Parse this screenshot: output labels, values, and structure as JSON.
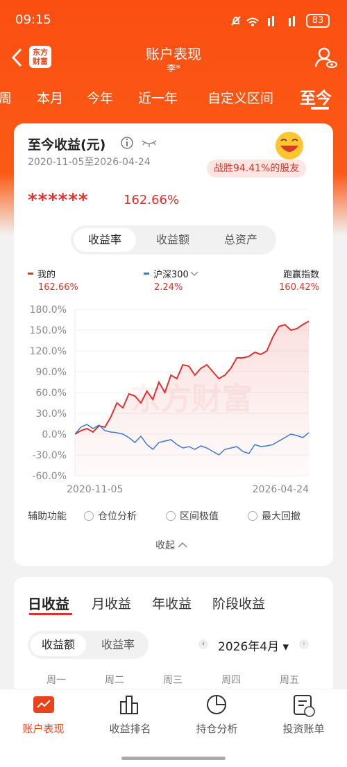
{
  "status": {
    "time": "09:15",
    "battery": "83"
  },
  "header": {
    "logo": [
      "东方",
      "财富"
    ],
    "title": "账户表现",
    "subtitle": "李*"
  },
  "tabs": [
    "周",
    "本月",
    "今年",
    "近一年",
    "自定义区间",
    "至今"
  ],
  "card": {
    "title": "至今收益(元)",
    "date_range": "2020-11-05至2026-04-24",
    "badge": "战胜94.41%的股友",
    "masked": "******",
    "return": "162.66%"
  },
  "segments": [
    "收益率",
    "收益额",
    "总资产"
  ],
  "legend": {
    "outperform": "跑赢指数",
    "values": [
      "162.66%",
      "2.24%",
      "160.42%"
    ]
  },
  "watermark": "东方财富",
  "chart_data": {
    "type": "line",
    "categories": [
      "2020-11-05",
      null,
      null,
      null,
      null,
      null,
      null,
      null,
      null,
      null,
      null,
      null,
      null,
      null,
      null,
      null,
      null,
      null,
      null,
      null,
      null,
      null,
      null,
      null,
      null,
      null,
      null,
      null,
      null,
      null,
      null,
      null,
      null,
      null,
      null,
      null,
      null,
      null,
      null,
      "2026-04-24"
    ],
    "series": [
      {
        "name": "我的",
        "color": "#e0312b",
        "values": [
          0,
          5,
          8,
          3,
          12,
          10,
          25,
          45,
          38,
          58,
          55,
          45,
          62,
          50,
          75,
          60,
          85,
          80,
          100,
          98,
          85,
          95,
          100,
          90,
          80,
          85,
          95,
          110,
          110,
          112,
          118,
          115,
          120,
          140,
          155,
          158,
          150,
          152,
          158,
          162.66
        ]
      },
      {
        "name": "沪深300",
        "color": "#3a78d4",
        "values": [
          0,
          10,
          14,
          8,
          13,
          5,
          3,
          2,
          0,
          -5,
          -12,
          -3,
          -15,
          -22,
          -12,
          -10,
          -8,
          -15,
          -20,
          -18,
          -22,
          -17,
          -20,
          -25,
          -30,
          -22,
          -20,
          -18,
          -25,
          -28,
          -15,
          -18,
          -17,
          -15,
          -10,
          -5,
          0,
          -2,
          -5,
          2.24
        ]
      }
    ],
    "ylim": [
      -60,
      180
    ],
    "yticks": [
      {
        "value": 180,
        "label": "180.0%"
      },
      {
        "value": 150,
        "label": "150.0%"
      },
      {
        "value": 120,
        "label": "120.0%"
      },
      {
        "value": 90,
        "label": "90.0%"
      },
      {
        "value": 60,
        "label": "60.0%"
      },
      {
        "value": 30,
        "label": "30.0%"
      },
      {
        "value": 0,
        "label": "0.0%"
      },
      {
        "value": -30,
        "label": "-30.0%"
      },
      {
        "value": -60,
        "label": "-60.0%"
      }
    ],
    "grid": true
  },
  "options": {
    "label": "辅助功能",
    "items": [
      "仓位分析",
      "区间极值",
      "最大回撤"
    ],
    "collapse": "收起"
  },
  "earnings": {
    "tabs": [
      "日收益",
      "月收益",
      "年收益",
      "阶段收益"
    ],
    "toggle": [
      "收益额",
      "收益率"
    ],
    "month": "2026年4月",
    "weekdays": [
      "周一",
      "周二",
      "周三",
      "周四",
      "周五"
    ]
  },
  "nav": [
    "账户表现",
    "收益排名",
    "持仓分析",
    "投资账单"
  ]
}
